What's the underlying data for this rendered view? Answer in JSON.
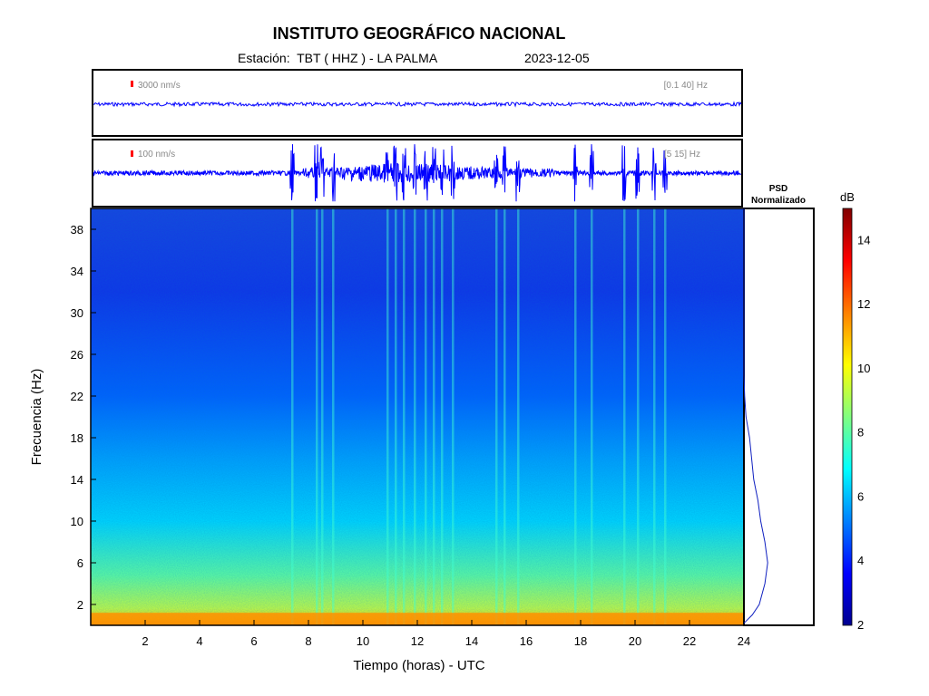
{
  "header": {
    "title": "INSTITUTO GEOGRÁFICO NACIONAL",
    "station": "Estación:  TBT ( HHZ ) - LA PALMA",
    "date": "2023-12-05"
  },
  "chart_data": [
    {
      "type": "line",
      "panel": "seismogram-broadband",
      "scale_label": "3000 nm/s",
      "filter_label": "[0.1 40] Hz",
      "color": "#0000ff",
      "marker_color": "#ff0000"
    },
    {
      "type": "line",
      "panel": "seismogram-filtered",
      "scale_label": "100 nm/s",
      "filter_label": "[5 15] Hz",
      "color": "#0000ff",
      "marker_color": "#ff0000",
      "burst_times_h": [
        7.4,
        8.3,
        8.5,
        8.9,
        10.9,
        11.2,
        11.5,
        11.9,
        12.3,
        12.6,
        12.9,
        13.3,
        14.9,
        15.2,
        15.7,
        17.8,
        18.4,
        19.6,
        20.1,
        20.7,
        21.1
      ]
    },
    {
      "type": "heatmap",
      "panel": "spectrogram",
      "xlabel": "Tiempo (horas) - UTC",
      "ylabel": "Frecuencia  (Hz)",
      "xlim": [
        0,
        24
      ],
      "ylim": [
        0,
        40
      ],
      "x_ticks": [
        2,
        4,
        6,
        8,
        10,
        12,
        14,
        16,
        18,
        20,
        22,
        24
      ],
      "y_ticks": [
        2,
        6,
        10,
        14,
        18,
        22,
        26,
        30,
        34,
        38
      ],
      "colorscale": [
        "#00008f",
        "#0000ff",
        "#0080ff",
        "#00ffff",
        "#80ff80",
        "#ffff00",
        "#ff8000",
        "#ff0000",
        "#800000"
      ]
    },
    {
      "type": "line",
      "panel": "psd",
      "title": "PSD\nNormalizado",
      "points": [
        [
          0.0,
          0.2
        ],
        [
          0.12,
          1.0
        ],
        [
          0.22,
          2.0
        ],
        [
          0.3,
          4.0
        ],
        [
          0.34,
          6.0
        ],
        [
          0.3,
          8.0
        ],
        [
          0.24,
          10.0
        ],
        [
          0.2,
          12.0
        ],
        [
          0.14,
          14.0
        ],
        [
          0.11,
          16.0
        ],
        [
          0.08,
          18.0
        ],
        [
          0.03,
          20.0
        ],
        [
          0.01,
          22.0
        ],
        [
          0.0,
          24.0
        ],
        [
          0.0,
          40.0
        ]
      ]
    },
    {
      "type": "heatmap",
      "panel": "colorbar",
      "title": "dB",
      "range": [
        2,
        15
      ],
      "ticks": [
        2,
        4,
        6,
        8,
        10,
        12,
        14
      ]
    }
  ]
}
